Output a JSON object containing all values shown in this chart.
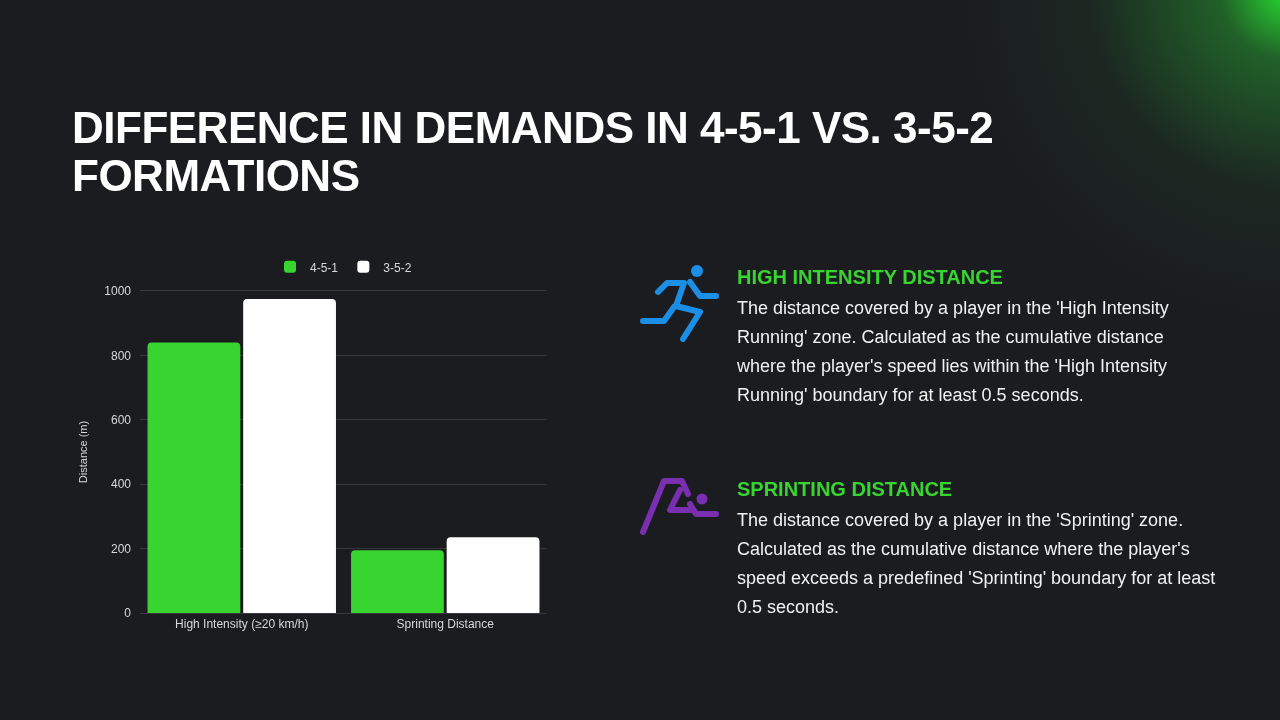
{
  "chart_data": [
    {
      "type": "bar",
      "title": "DIFFERENCE IN DEMANDS IN 4-5-1 VS. 3-5-2 FORMATIONS",
      "ylabel": "Distance (m)",
      "categories": [
        "High Intensity (≥20 km/h)",
        "Sprinting Distance"
      ],
      "series": [
        {
          "name": "4-5-1",
          "color": "#38d430",
          "values": [
            840,
            195
          ]
        },
        {
          "name": "3-5-2",
          "color": "#ffffff",
          "values": [
            975,
            235
          ]
        }
      ],
      "ylim": [
        0,
        1000
      ],
      "yticks": [
        0,
        200,
        400,
        600,
        800,
        1000
      ],
      "grid": "y",
      "legend": "top"
    },
    {
      "type": "other",
      "title": "HIGH INTENSITY DISTANCE",
      "annotations": [
        "The distance covered by a player in the 'High Intensity Running' zone. Calculated as the cumulative distance where the player's speed lies within the 'High Intensity Running' boundary for at least 0.5 seconds."
      ]
    },
    {
      "type": "other",
      "title": "SPRINTING DISTANCE",
      "annotations": [
        "The distance covered by a player in the 'Sprinting' zone. Calculated as the cumulative distance where the player's speed exceeds a predefined 'Sprinting' boundary for at least 0.5 seconds."
      ]
    }
  ]
}
